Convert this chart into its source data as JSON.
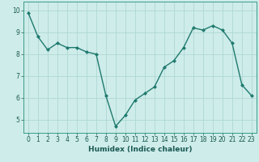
{
  "x": [
    0,
    1,
    2,
    3,
    4,
    5,
    6,
    7,
    8,
    9,
    10,
    11,
    12,
    13,
    14,
    15,
    16,
    17,
    18,
    19,
    20,
    21,
    22,
    23
  ],
  "y": [
    9.9,
    8.8,
    8.2,
    8.5,
    8.3,
    8.3,
    8.1,
    8.0,
    6.1,
    4.7,
    5.2,
    5.9,
    6.2,
    6.5,
    7.4,
    7.7,
    8.3,
    9.2,
    9.1,
    9.3,
    9.1,
    8.5,
    6.6,
    6.1
  ],
  "xlabel": "Humidex (Indice chaleur)",
  "bg_color": "#ceecea",
  "line_color": "#1f7a6e",
  "marker_color": "#1f7a6e",
  "grid_color": "#aed8d4",
  "ylim_min": 4.4,
  "ylim_max": 10.4,
  "xlim_min": -0.5,
  "xlim_max": 23.5,
  "yticks": [
    5,
    6,
    7,
    8,
    9,
    10
  ],
  "xticks": [
    0,
    1,
    2,
    3,
    4,
    5,
    6,
    7,
    8,
    9,
    10,
    11,
    12,
    13,
    14,
    15,
    16,
    17,
    18,
    19,
    20,
    21,
    22,
    23
  ],
  "xlabel_fontsize": 6.5,
  "tick_fontsize": 5.5,
  "spine_color": "#3a9a8a"
}
